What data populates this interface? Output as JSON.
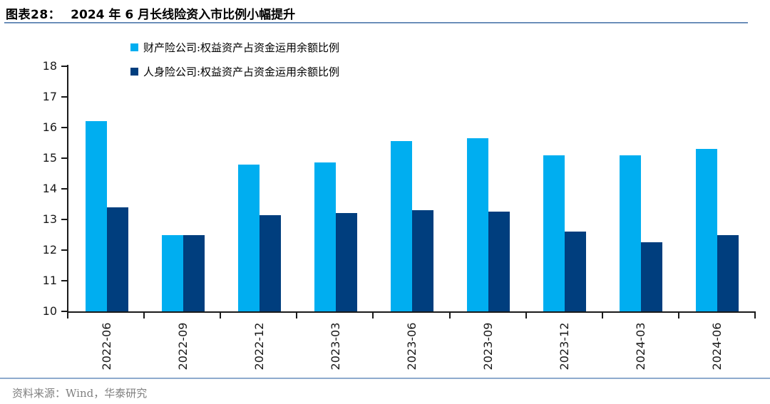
{
  "header": {
    "figure_label": "图表28：",
    "title": "2024 年 6 月长线险资入市比例小幅提升"
  },
  "footer": {
    "source": "资料来源：Wind，华泰研究"
  },
  "colors": {
    "series_property": "#00AEF0",
    "series_life": "#003E7E",
    "axis": "#1a1a1a",
    "divider_rule": "#7396c0",
    "source_text": "#808080"
  },
  "chart_data": {
    "type": "bar",
    "title": "2024 年 6 月长线险资入市比例小幅提升",
    "categories": [
      "2022-06",
      "2022-09",
      "2022-12",
      "2023-03",
      "2023-06",
      "2023-09",
      "2023-12",
      "2024-03",
      "2024-06"
    ],
    "series": [
      {
        "name": "财产险公司:权益资产占资金运用余额比例",
        "color": "#00AEF0",
        "values": [
          16.2,
          12.5,
          14.8,
          14.85,
          15.55,
          15.65,
          15.1,
          15.1,
          15.3
        ]
      },
      {
        "name": "人身险公司:权益资产占资金运用余额比例",
        "color": "#003E7E",
        "values": [
          13.4,
          12.5,
          13.15,
          13.2,
          13.3,
          13.25,
          12.6,
          12.25,
          12.5
        ]
      }
    ],
    "xlabel": "",
    "ylabel": "",
    "ylim": [
      10,
      18
    ],
    "ytick_step": 1,
    "yticks": [
      10,
      11,
      12,
      13,
      14,
      15,
      16,
      17,
      18
    ],
    "grid": false,
    "legend_position": "top-left-inside"
  }
}
